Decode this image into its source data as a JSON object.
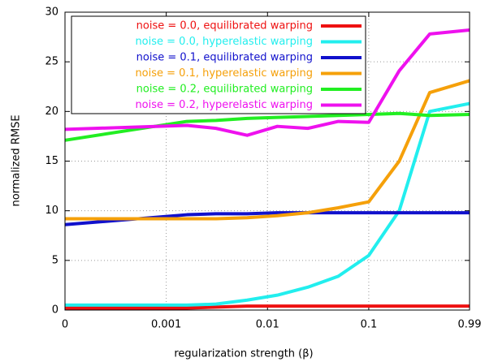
{
  "chart_data": {
    "type": "line",
    "xlabel": "regularization strength (β)",
    "ylabel": "normalized RMSE",
    "xscale": "log",
    "x": [
      0,
      0.0016,
      0.0031,
      0.0063,
      0.0125,
      0.025,
      0.05,
      0.1,
      0.2,
      0.4,
      0.99
    ],
    "xlim": [
      0,
      0.99
    ],
    "xticks": [
      0,
      0.001,
      0.01,
      0.1,
      0.99
    ],
    "ylim": [
      0,
      30
    ],
    "yticks": [
      0,
      5,
      10,
      15,
      20,
      25,
      30
    ],
    "grid": true,
    "legend": "upper left",
    "series": [
      {
        "name": "noise = 0.0, equilibrated warping",
        "color": "#ee1111",
        "values": [
          0.2,
          0.2,
          0.3,
          0.4,
          0.4,
          0.4,
          0.4,
          0.4,
          0.4,
          0.4,
          0.4
        ]
      },
      {
        "name": "noise = 0.0, hyperelastic warping",
        "color": "#22eeee",
        "values": [
          0.5,
          0.5,
          0.6,
          1.0,
          1.5,
          2.3,
          3.4,
          5.5,
          10,
          20,
          20.8
        ]
      },
      {
        "name": "noise = 0.1, equilibrated warping",
        "color": "#1111cc",
        "values": [
          8.6,
          9.6,
          9.7,
          9.7,
          9.8,
          9.8,
          9.8,
          9.8,
          9.8,
          9.8,
          9.8
        ]
      },
      {
        "name": "noise = 0.1, hyperelastic warping",
        "color": "#f5a00a",
        "values": [
          9.2,
          9.2,
          9.2,
          9.3,
          9.5,
          9.8,
          10.3,
          10.9,
          15,
          21.9,
          23.1
        ]
      },
      {
        "name": "noise = 0.2, equilibrated warping",
        "color": "#22ee22",
        "values": [
          17.1,
          19.0,
          19.1,
          19.3,
          19.4,
          19.5,
          19.6,
          19.7,
          19.8,
          19.6,
          19.7
        ]
      },
      {
        "name": "noise = 0.2, hyperelastic warping",
        "color": "#ee11ee",
        "values": [
          18.2,
          18.6,
          18.3,
          17.6,
          18.5,
          18.3,
          19.0,
          18.9,
          24.1,
          27.8,
          28.2
        ]
      }
    ]
  }
}
